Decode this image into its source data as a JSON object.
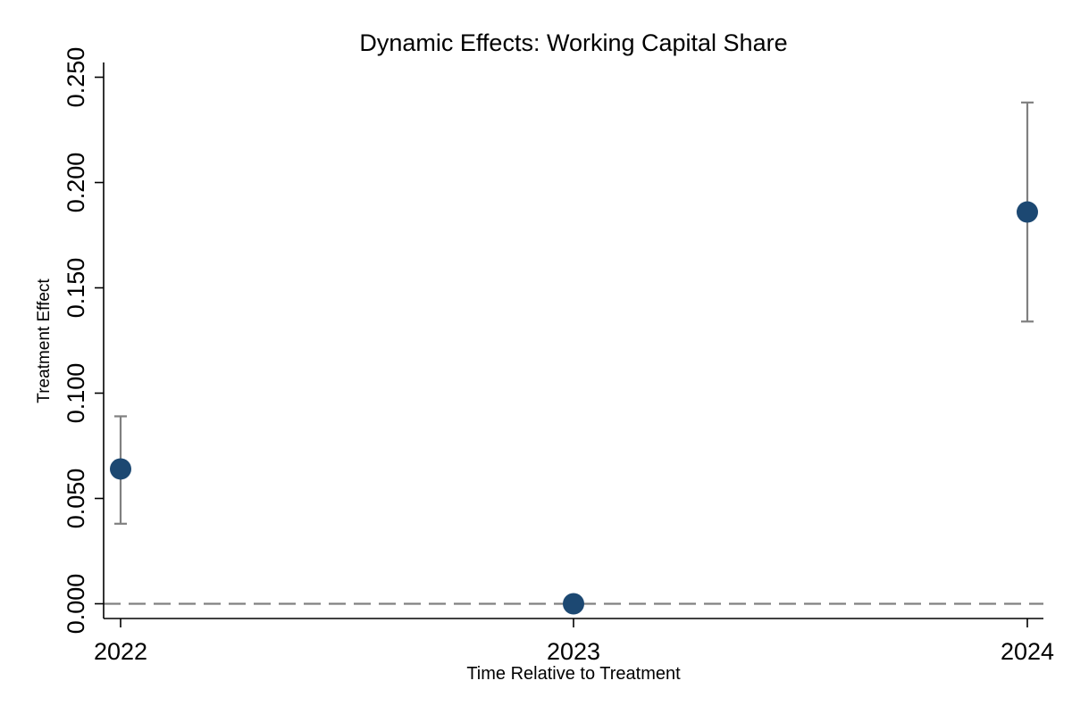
{
  "chart_data": {
    "type": "scatter",
    "title": "Dynamic Effects: Working Capital Share",
    "xlabel": "Time Relative to Treatment",
    "ylabel": "Treatment Effect",
    "x_categories": [
      "2022",
      "2023",
      "2024"
    ],
    "points": [
      {
        "x": "2022",
        "estimate": 0.064,
        "ci_low": 0.038,
        "ci_high": 0.089
      },
      {
        "x": "2023",
        "estimate": 0.0,
        "ci_low": 0.0,
        "ci_high": 0.0
      },
      {
        "x": "2024",
        "estimate": 0.186,
        "ci_low": 0.134,
        "ci_high": 0.238
      }
    ],
    "yticks": [
      "0.000",
      "0.050",
      "0.100",
      "0.150",
      "0.200",
      "0.250"
    ],
    "ylim": [
      -0.007,
      0.257
    ],
    "reference_line": {
      "y": 0,
      "style": "dashed"
    },
    "grid": false,
    "legend": "none",
    "colors": {
      "marker": "#1c4872",
      "error_bar": "#808080",
      "reference_line": "#808080",
      "axis": "#000000"
    }
  }
}
